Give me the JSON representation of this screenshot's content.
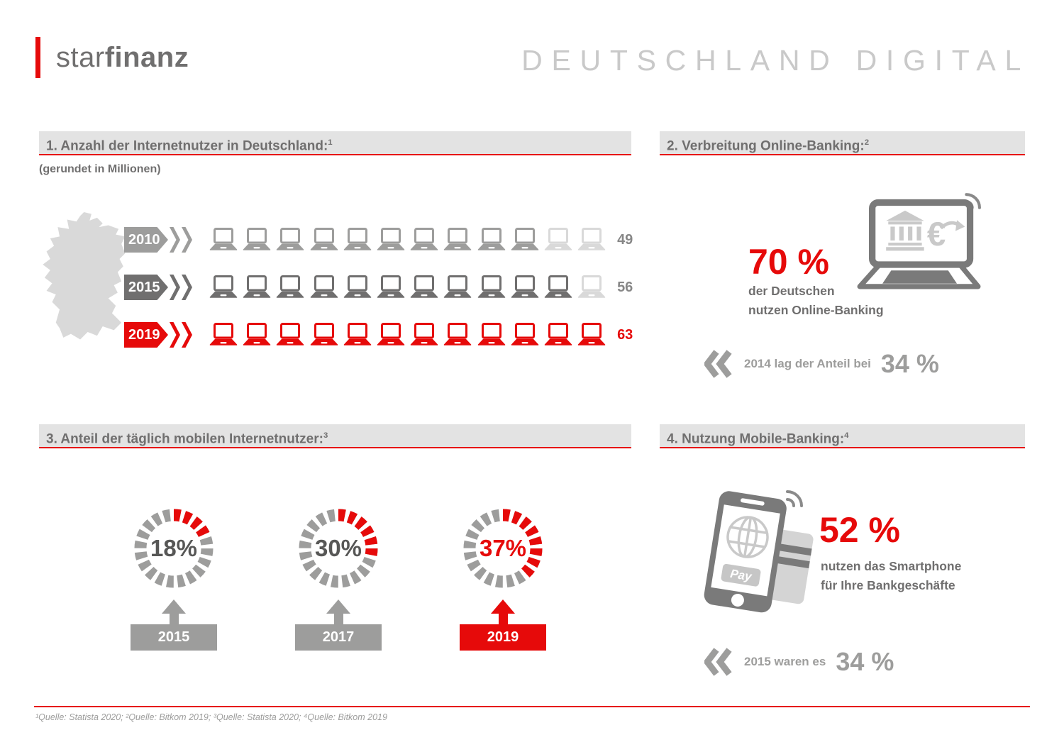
{
  "brand": {
    "logo_star": "star",
    "logo_finanz": "finanz"
  },
  "header_title": "DEUTSCHLAND DIGITAL",
  "colors": {
    "accent_red": "#e60a0a",
    "dark_gray": "#706f6f",
    "mid_gray": "#9d9d9c",
    "light_gray": "#d9d9d9",
    "value_gray": "#878787",
    "section_bar_background": "#e3e3e3",
    "title_gray": "#c9c9c9",
    "icon_gray": "#7a7a7a",
    "icon_light_gray": "#c9c9c9"
  },
  "icons": [
    "germany-map-icon",
    "laptop-icon",
    "chevron-right-icon",
    "back-chevrons-icon",
    "online-banking-laptop-icon",
    "bank-icon",
    "euro-transfer-icon",
    "wifi-icon",
    "donut-ring",
    "up-arrow-icon",
    "smartphone-icon",
    "globe-icon",
    "pay-button",
    "credit-card-icon",
    "nfc-icon"
  ],
  "section1": {
    "heading": "1. Anzahl der Internetnutzer in Deutschland:",
    "heading_sup": "1",
    "subtitle": "(gerundet in Millionen)",
    "rows": [
      {
        "year": "2010",
        "value": "49",
        "total": 12,
        "filled": 10,
        "style": "gray"
      },
      {
        "year": "2015",
        "value": "56",
        "total": 12,
        "filled": 11,
        "style": "darkgray"
      },
      {
        "year": "2019",
        "value": "63",
        "total": 12,
        "filled": 12,
        "style": "red"
      }
    ]
  },
  "section2": {
    "heading": "2. Verbreitung Online-Banking:",
    "heading_sup": "2",
    "stat_value": "70 %",
    "stat_lines": [
      "der Deutschen",
      "nutzen Online-Banking"
    ],
    "compare_text": "2014 lag der Anteil bei",
    "compare_value": "34 %"
  },
  "section3": {
    "heading": "3. Anteil der täglich mobilen Internetnutzer:",
    "heading_sup": "3",
    "segments_per_ring": 20,
    "donuts": [
      {
        "pct": 18,
        "label": "18%",
        "year": "2015",
        "style": "gray"
      },
      {
        "pct": 30,
        "label": "30%",
        "year": "2017",
        "style": "gray"
      },
      {
        "pct": 37,
        "label": "37%",
        "year": "2019",
        "style": "red"
      }
    ]
  },
  "section4": {
    "heading": "4. Nutzung Mobile-Banking:",
    "heading_sup": "4",
    "stat_value": "52 %",
    "stat_lines": [
      "nutzen das Smartphone",
      "für Ihre Bankgeschäfte"
    ],
    "compare_text": "2015 waren es",
    "compare_value": "34 %",
    "pay_label": "Pay"
  },
  "footer": {
    "sources": "¹Quelle: Statista 2020; ²Quelle: Bitkom 2019; ³Quelle: Statista 2020; ⁴Quelle: Bitkom 2019"
  },
  "chart_data": [
    {
      "type": "bar",
      "subtype": "pictogram",
      "title": "1. Anzahl der Internetnutzer in Deutschland:",
      "note": "(gerundet in Millionen)",
      "categories": [
        "2010",
        "2015",
        "2019"
      ],
      "values": [
        49,
        56,
        63
      ],
      "unit": "Millionen",
      "icon": "laptop",
      "icons_per_row": 12,
      "icons_filled": [
        10,
        11,
        12
      ],
      "highlight_category": "2019",
      "source": "Quelle: Statista 2020"
    },
    {
      "type": "stat",
      "title": "2. Verbreitung Online-Banking:",
      "value": 70,
      "unit": "%",
      "description": "der Deutschen nutzen Online-Banking",
      "comparison": {
        "year": 2014,
        "value": 34,
        "unit": "%",
        "text": "2014 lag der Anteil bei 34 %"
      },
      "source": "Quelle: Bitkom 2019"
    },
    {
      "type": "pie",
      "subtype": "segmented-donut",
      "title": "3. Anteil der täglich mobilen Internetnutzer:",
      "categories": [
        "2015",
        "2017",
        "2019"
      ],
      "values": [
        18,
        30,
        37
      ],
      "unit": "%",
      "segments_per_ring": 20,
      "highlight_category": "2019",
      "source": "Quelle: Statista 2020"
    },
    {
      "type": "stat",
      "title": "4. Nutzung Mobile-Banking:",
      "value": 52,
      "unit": "%",
      "description": "nutzen das Smartphone für Ihre Bankgeschäfte",
      "comparison": {
        "year": 2015,
        "value": 34,
        "unit": "%",
        "text": "2015 waren es 34 %"
      },
      "source": "Quelle: Bitkom 2019"
    }
  ]
}
